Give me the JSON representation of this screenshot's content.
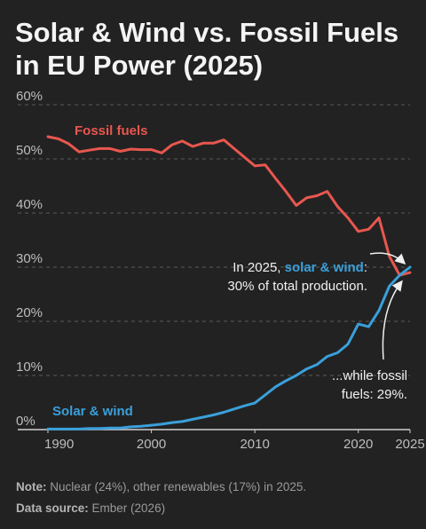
{
  "title_line1": "Solar & Wind vs. Fossil Fuels",
  "title_line2": "in EU Power (2025)",
  "chart_data": {
    "type": "line",
    "title": "Solar & Wind vs. Fossil Fuels in EU Power (2025)",
    "xlabel": "",
    "ylabel": "",
    "xlim": [
      1990,
      2025
    ],
    "ylim": [
      0,
      60
    ],
    "y_ticks": [
      "0%",
      "10%",
      "20%",
      "30%",
      "40%",
      "50%",
      "60%"
    ],
    "x_ticks": [
      "1990",
      "2000",
      "2010",
      "2020",
      "2025"
    ],
    "grid": true,
    "series": [
      {
        "name": "Fossil fuels",
        "color": "#e8574f",
        "x": [
          1990,
          1991,
          1992,
          1993,
          1994,
          1995,
          1996,
          1997,
          1998,
          1999,
          2000,
          2001,
          2002,
          2003,
          2004,
          2005,
          2006,
          2007,
          2008,
          2009,
          2010,
          2011,
          2012,
          2013,
          2014,
          2015,
          2016,
          2017,
          2018,
          2019,
          2020,
          2021,
          2022,
          2023,
          2024,
          2025
        ],
        "values": [
          54.1,
          53.7,
          52.8,
          51.3,
          51.6,
          51.9,
          51.9,
          51.4,
          51.8,
          51.7,
          51.7,
          51.1,
          52.6,
          53.3,
          52.3,
          52.9,
          52.9,
          53.5,
          51.9,
          50.3,
          48.7,
          48.9,
          46.4,
          44.0,
          41.4,
          42.8,
          43.2,
          44.0,
          41.2,
          39.1,
          36.6,
          37.0,
          39.1,
          32.0,
          28.5,
          29.0
        ]
      },
      {
        "name": "Solar & wind",
        "color": "#3aa0db",
        "x": [
          1990,
          1991,
          1992,
          1993,
          1994,
          1995,
          1996,
          1997,
          1998,
          1999,
          2000,
          2001,
          2002,
          2003,
          2004,
          2005,
          2006,
          2007,
          2008,
          2009,
          2010,
          2011,
          2012,
          2013,
          2014,
          2015,
          2016,
          2017,
          2018,
          2019,
          2020,
          2021,
          2022,
          2023,
          2024,
          2025
        ],
        "values": [
          0.1,
          0.1,
          0.1,
          0.1,
          0.2,
          0.2,
          0.3,
          0.3,
          0.5,
          0.6,
          0.8,
          1.0,
          1.3,
          1.5,
          1.9,
          2.3,
          2.7,
          3.2,
          3.8,
          4.4,
          4.9,
          6.4,
          7.9,
          9.0,
          10.0,
          11.2,
          12.0,
          13.5,
          14.2,
          15.8,
          19.5,
          19.0,
          22.0,
          26.5,
          28.5,
          30.0
        ]
      }
    ],
    "annotations": {
      "top_line1_prefix": "In 2025, ",
      "top_line1_highlight": "solar & wind",
      "top_line1_suffix": ":",
      "top_line2": "30% of total production.",
      "bottom_line1": "...while fossil",
      "bottom_line2": "fuels: 29%."
    }
  },
  "footer": {
    "note_label": "Note:",
    "note_text": " Nuclear (24%), other renewables (17%) in 2025.",
    "source_label": "Data source:",
    "source_text": " Ember (2026)"
  }
}
